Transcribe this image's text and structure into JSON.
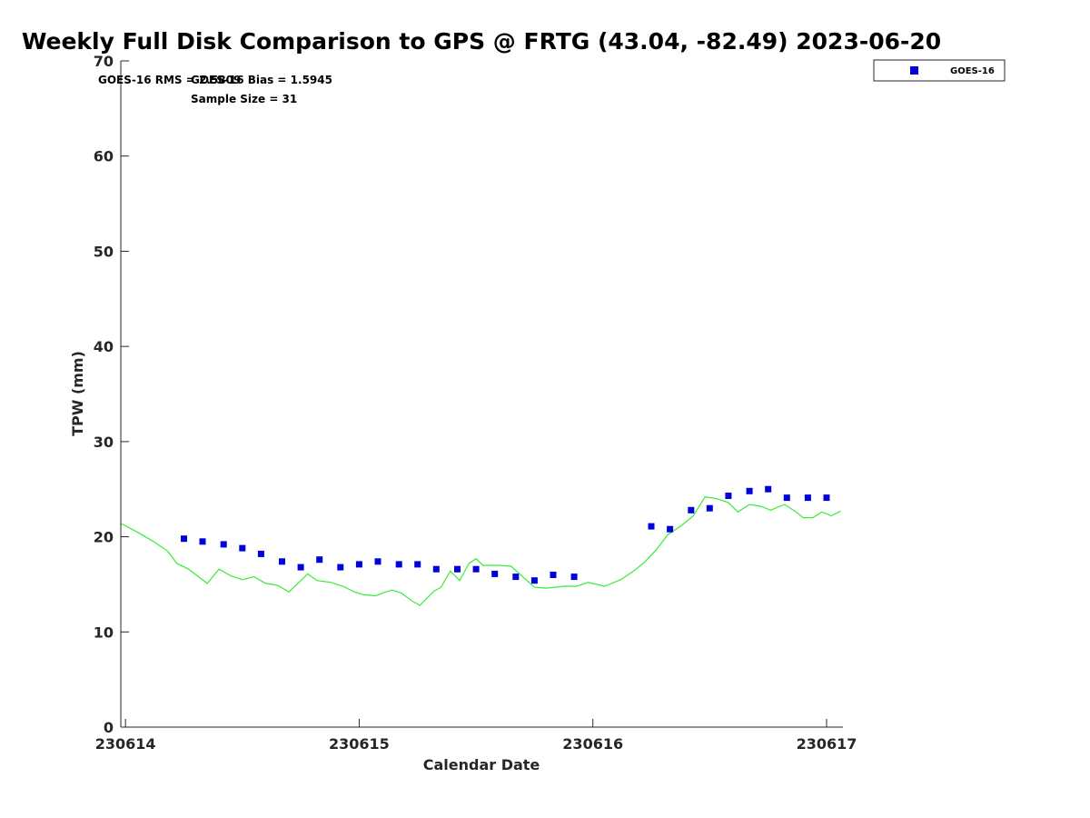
{
  "chart_data": {
    "type": "scatter",
    "title": "Weekly Full Disk Comparison to GPS @ FRTG (43.04, -82.49) 2023-06-20",
    "xlabel": "Calendar Date",
    "ylabel": "TPW (mm)",
    "xlim": [
      230613.98,
      230617.07
    ],
    "ylim": [
      0,
      70
    ],
    "xticks": [
      230614,
      230615,
      230616,
      230617
    ],
    "yticks": [
      0,
      10,
      20,
      30,
      40,
      50,
      60,
      70
    ],
    "grid": false,
    "legend_position": "top-right",
    "stats": {
      "rms": "GOES-16 RMS = 2.5809",
      "bias": "GOES-16 Bias = 1.5945",
      "sample_size": "Sample Size = 31"
    },
    "series": [
      {
        "name": "GOES-16",
        "kind": "markers",
        "color": "#0000dd",
        "x": [
          230614.25,
          230614.33,
          230614.42,
          230614.5,
          230614.58,
          230614.67,
          230614.75,
          230614.83,
          230614.92,
          230615.0,
          230615.08,
          230615.17,
          230615.25,
          230615.33,
          230615.42,
          230615.5,
          230615.58,
          230615.67,
          230615.75,
          230615.83,
          230615.92,
          230616.25,
          230616.33,
          230616.42,
          230616.5,
          230616.58,
          230616.67,
          230616.75,
          230616.83,
          230616.92,
          230617.0
        ],
        "y": [
          19.8,
          19.5,
          19.2,
          18.8,
          18.2,
          17.4,
          16.8,
          17.6,
          16.8,
          17.1,
          17.4,
          17.1,
          17.1,
          16.6,
          16.6,
          16.6,
          16.1,
          15.8,
          15.4,
          16.0,
          15.8,
          21.1,
          20.8,
          22.8,
          23.0,
          24.3,
          24.8,
          25.0,
          24.1,
          24.1,
          24.1
        ]
      },
      {
        "kind": "line",
        "color": "#33ee33",
        "x": [
          230613.98,
          230614.05,
          230614.12,
          230614.18,
          230614.22,
          230614.27,
          230614.35,
          230614.4,
          230614.45,
          230614.5,
          230614.55,
          230614.6,
          230614.65,
          230614.7,
          230614.78,
          230614.82,
          230614.88,
          230614.93,
          230614.98,
          230615.02,
          230615.07,
          230615.1,
          230615.14,
          230615.18,
          230615.23,
          230615.26,
          230615.32,
          230615.35,
          230615.39,
          230615.43,
          230615.47,
          230615.5,
          230615.53,
          230615.6,
          230615.65,
          230615.7,
          230615.75,
          230615.8,
          230615.88,
          230615.93,
          230615.98,
          230616.05,
          230616.12,
          230616.18,
          230616.22,
          230616.27,
          230616.32,
          230616.38,
          230616.43,
          230616.48,
          230616.53,
          230616.58,
          230616.62,
          230616.67,
          230616.72,
          230616.76,
          230616.82,
          230616.87,
          230616.9,
          230616.94,
          230616.98,
          230617.02,
          230617.06
        ],
        "y": [
          21.4,
          20.5,
          19.5,
          18.5,
          17.2,
          16.6,
          15.1,
          16.6,
          15.9,
          15.5,
          15.8,
          15.1,
          14.9,
          14.2,
          16.1,
          15.4,
          15.2,
          14.8,
          14.2,
          13.9,
          13.8,
          14.1,
          14.4,
          14.1,
          13.2,
          12.8,
          14.3,
          14.7,
          16.4,
          15.4,
          17.2,
          17.7,
          17.0,
          17.0,
          16.9,
          15.8,
          14.7,
          14.6,
          14.8,
          14.8,
          15.2,
          14.8,
          15.5,
          16.5,
          17.3,
          18.6,
          20.2,
          21.2,
          22.2,
          24.2,
          24.0,
          23.6,
          22.6,
          23.4,
          23.2,
          22.8,
          23.4,
          22.6,
          22.0,
          22.0,
          22.6,
          22.2,
          22.7
        ]
      }
    ]
  }
}
